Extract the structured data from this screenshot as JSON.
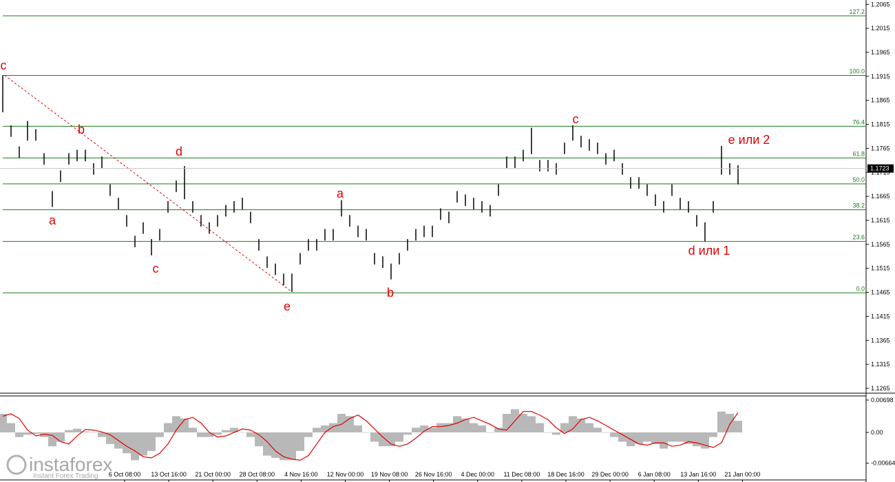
{
  "chart_data": [
    {
      "type": "ohlc",
      "categories": [
        "6 Oct 08:00",
        "13 Oct 16:00",
        "21 Oct 00:00",
        "28 Oct 08:00",
        "4 Nov 16:00",
        "12 Nov 00:00",
        "19 Nov 08:00",
        "26 Nov 16:00",
        "4 Dec 00:00",
        "11 Dec 08:00",
        "18 Dec 16:00",
        "29 Dec 00:00",
        "6 Jan 08:00",
        "13 Jan 16:00",
        "21 Jan 00:00"
      ],
      "high": [
        1.1917,
        1.1813,
        1.1769,
        1.1822,
        1.1805,
        1.1755,
        1.1676,
        1.1719,
        1.1755,
        1.1762,
        1.1762,
        1.1734,
        1.1748,
        1.169,
        1.1662,
        1.1626,
        1.1583,
        1.1611,
        1.1576,
        1.1597,
        1.1655,
        1.1698,
        1.1728,
        1.1655,
        1.1626,
        1.1611,
        1.1626,
        1.1647,
        1.1655,
        1.1662,
        1.1633,
        1.1576,
        1.154,
        1.1525,
        1.1504,
        1.1504,
        1.1547,
        1.1576,
        1.1576,
        1.1597,
        1.1597,
        1.1657,
        1.1626,
        1.1604,
        1.1597,
        1.1547,
        1.154,
        1.1525,
        1.1547,
        1.1576,
        1.1597,
        1.1604,
        1.1604,
        1.164,
        1.1633,
        1.1676,
        1.1669,
        1.1662,
        1.1655,
        1.1647,
        1.169,
        1.1748,
        1.1748,
        1.1762,
        1.1808,
        1.1741,
        1.1741,
        1.1734,
        1.1777,
        1.1813,
        1.1791,
        1.1784,
        1.1777,
        1.1755,
        1.1762,
        1.1734,
        1.1705,
        1.1705,
        1.169,
        1.1669,
        1.1655,
        1.169,
        1.1662,
        1.1655,
        1.1626,
        1.1611,
        1.1655,
        1.177,
        1.1734,
        1.173
      ],
      "low": [
        1.184,
        1.1789,
        1.1745,
        1.1781,
        1.1781,
        1.1731,
        1.1643,
        1.1695,
        1.1731,
        1.1738,
        1.1738,
        1.171,
        1.1724,
        1.1666,
        1.1638,
        1.1602,
        1.1559,
        1.1587,
        1.1542,
        1.1573,
        1.1631,
        1.1674,
        1.1659,
        1.1631,
        1.1602,
        1.1587,
        1.1602,
        1.1623,
        1.1631,
        1.1638,
        1.1609,
        1.1552,
        1.1516,
        1.1501,
        1.148,
        1.1466,
        1.1523,
        1.1552,
        1.1552,
        1.1573,
        1.1573,
        1.1623,
        1.1602,
        1.158,
        1.1573,
        1.1523,
        1.1516,
        1.1492,
        1.1523,
        1.1552,
        1.1573,
        1.158,
        1.158,
        1.1616,
        1.1609,
        1.1652,
        1.1645,
        1.1638,
        1.1631,
        1.1623,
        1.1666,
        1.1724,
        1.1724,
        1.1738,
        1.1753,
        1.1717,
        1.1717,
        1.171,
        1.1753,
        1.1781,
        1.1767,
        1.176,
        1.1753,
        1.1731,
        1.1738,
        1.171,
        1.1681,
        1.1681,
        1.1666,
        1.1645,
        1.1631,
        1.1666,
        1.1638,
        1.1631,
        1.1602,
        1.1571,
        1.1631,
        1.171,
        1.171,
        1.169
      ],
      "color": "#000000",
      "ylim": [
        1.1255,
        1.2074
      ],
      "yticks": [
        1.2065,
        1.2015,
        1.1965,
        1.1915,
        1.1865,
        1.1815,
        1.1765,
        1.1715,
        1.1665,
        1.1615,
        1.1565,
        1.1515,
        1.1465,
        1.1415,
        1.1365,
        1.1315,
        1.1265
      ],
      "last_price": 1.1723,
      "fib_color": "#1a7a1a",
      "fib_levels": [
        {
          "label": "127.2",
          "price": 1.2041
        },
        {
          "label": "100.0",
          "price": 1.1917
        },
        {
          "label": "76.4",
          "price": 1.1811
        },
        {
          "label": "61.8",
          "price": 1.1745
        },
        {
          "label": "50.0",
          "price": 1.1691
        },
        {
          "label": "38.2",
          "price": 1.1637
        },
        {
          "label": "23.6",
          "price": 1.1571
        },
        {
          "label": "0.0",
          "price": 1.1464
        }
      ],
      "annotations": [
        "c",
        "b",
        "a",
        "c",
        "d",
        "e",
        "a",
        "b",
        "c",
        "d или 1",
        "e или 2"
      ],
      "annotation_color": "#e00000"
    },
    {
      "type": "oscillator",
      "histogram_color": "#b8b8b8",
      "signal_color": "#e00000",
      "histogram": [
        0.004,
        0.002,
        -0.001,
        -0.0005,
        -0.0003,
        -0.001,
        -0.003,
        -0.002,
        0.0005,
        0.0008,
        0.0002,
        0,
        -0.001,
        -0.0025,
        -0.0035,
        -0.0045,
        -0.006,
        -0.005,
        -0.004,
        -0.001,
        0.002,
        0.0035,
        0.003,
        0.001,
        -0.001,
        -0.001,
        -0.0005,
        0.0005,
        0.001,
        0,
        -0.001,
        -0.003,
        -0.005,
        -0.0055,
        -0.006,
        -0.006,
        -0.004,
        -0.001,
        0.001,
        0.0015,
        0.002,
        0.004,
        0.0035,
        0.0015,
        0,
        -0.002,
        -0.003,
        -0.003,
        -0.002,
        -0.0005,
        0.001,
        0.0015,
        0.001,
        0.002,
        0.002,
        0.0035,
        0.003,
        0.002,
        0.0015,
        0,
        0.001,
        0.004,
        0.005,
        0.004,
        0.0035,
        0.002,
        0,
        -0.0005,
        0.002,
        0.0035,
        0.003,
        0.002,
        0.001,
        0,
        -0.001,
        -0.002,
        -0.003,
        -0.0025,
        -0.002,
        -0.0025,
        -0.0035,
        -0.002,
        -0.002,
        -0.0025,
        -0.003,
        -0.0035,
        -0.001,
        0.0045,
        0.004,
        0.0025
      ],
      "signal": [
        0.0035,
        0.004,
        0.003,
        0.0005,
        -0.00075,
        -0.0004,
        -0.00065,
        -0.002,
        -0.0025,
        -0.00075,
        0.00065,
        0.0005,
        0.0001,
        -0.0005,
        -0.00175,
        -0.003,
        -0.004,
        -0.00525,
        -0.0055,
        -0.0045,
        -0.0025,
        0.0005,
        0.00275,
        0.00325,
        0.002,
        0,
        -0.001,
        -0.00075,
        0,
        0.00075,
        0.0005,
        -0.0005,
        -0.002,
        -0.004,
        -0.00525,
        -0.00575,
        -0.006,
        -0.005,
        -0.0025,
        0,
        0.00125,
        0.00175,
        0.003,
        0.00375,
        0.0025,
        0.00075,
        -0.001,
        -0.0025,
        -0.003,
        -0.0025,
        -0.00125,
        0.00025,
        0.00125,
        0.00125,
        0.0015,
        0.002,
        0.00275,
        0.00325,
        0.0025,
        0.00175,
        0.00075,
        0.0005,
        0.0025,
        0.0045,
        0.0045,
        0.00375,
        0.00275,
        0.001,
        -0.00025,
        0.00075,
        0.00275,
        0.00325,
        0.0025,
        0.0015,
        0.0005,
        -0.0005,
        -0.0015,
        -0.0025,
        -0.00275,
        -0.00225,
        -0.00225,
        -0.003,
        -0.00275,
        -0.002,
        -0.00225,
        -0.00275,
        -0.00325,
        -0.00225,
        0.00175,
        0.00425
      ],
      "ylim": [
        -0.00996,
        0.00787
      ],
      "yticks": [
        0.00698,
        {
          "value": 0,
          "label": "0.00"
        },
        -0.00664
      ]
    }
  ],
  "watermark": {
    "name": "instaforex",
    "tagline": "Instant Forex Trading"
  }
}
